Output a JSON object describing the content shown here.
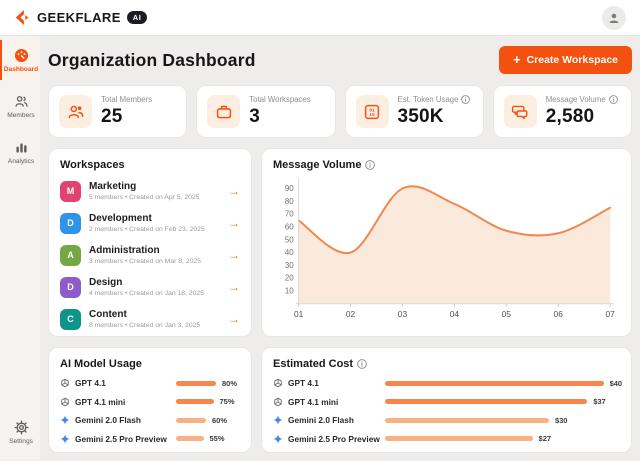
{
  "brand": {
    "name": "GEEKFLARE",
    "badge": "AI"
  },
  "header": {
    "title": "Organization Dashboard",
    "create_button": {
      "plus": "+",
      "label": "Create Workspace"
    }
  },
  "sidebar": {
    "items": [
      {
        "label": "Dashboard",
        "active": true
      },
      {
        "label": "Members",
        "active": false
      },
      {
        "label": "Analytics",
        "active": false
      }
    ],
    "settings": {
      "label": "Settings"
    }
  },
  "colors": {
    "primary": "#f4500f",
    "accent_arrow": "#f4670f",
    "bar_orange": "#f8854a",
    "bar_light": "#f9b184"
  },
  "stats": {
    "cards": [
      {
        "label": "Total Members",
        "value": "25",
        "icon": "members-icon",
        "has_info": false
      },
      {
        "label": "Total Workspaces",
        "value": "3",
        "icon": "briefcase-icon",
        "has_info": false
      },
      {
        "label": "Est. Token Usage",
        "value": "350K",
        "icon": "token-icon",
        "has_info": true
      },
      {
        "label": "Message Volume",
        "value": "2,580",
        "icon": "chat-icon",
        "has_info": true
      }
    ]
  },
  "workspaces": {
    "title": "Workspaces",
    "items": [
      {
        "initial": "M",
        "name": "Marketing",
        "meta": "5 members  •  Created on Apr 5, 2025",
        "color": "#e0436f"
      },
      {
        "initial": "D",
        "name": "Development",
        "meta": "2 members  •  Created on Feb 23, 2025",
        "color": "#2e93ea"
      },
      {
        "initial": "A",
        "name": "Administration",
        "meta": "3 members  •  Created on Mar 8, 2025",
        "color": "#74a844"
      },
      {
        "initial": "D",
        "name": "Design",
        "meta": "4 members  •  Created on Jan 18, 2025",
        "color": "#8e5bc8"
      },
      {
        "initial": "C",
        "name": "Content",
        "meta": "8 members  •  Created on Jan 3, 2025",
        "color": "#0e9488"
      }
    ]
  },
  "chart_data": {
    "type": "area",
    "title": "Message Volume",
    "x": [
      "01",
      "02",
      "03",
      "04",
      "05",
      "06",
      "07"
    ],
    "values": [
      65,
      40,
      90,
      78,
      57,
      55,
      75
    ],
    "yticks": [
      10,
      20,
      30,
      40,
      50,
      60,
      70,
      80,
      90
    ],
    "ylim": [
      0,
      95
    ],
    "line_color": "#ef8a4e",
    "fill_color": "#fbe9dc",
    "grid": false,
    "legend": "none"
  },
  "usage": {
    "title": "AI Model Usage",
    "items": [
      {
        "model": "GPT 4.1",
        "provider": "openai",
        "value": 80,
        "pct": "80%",
        "bar_color": "#f8854a"
      },
      {
        "model": "GPT 4.1 mini",
        "provider": "openai",
        "value": 75,
        "pct": "75%",
        "bar_color": "#f8854a"
      },
      {
        "model": "Gemini 2.0 Flash",
        "provider": "gemini",
        "value": 60,
        "pct": "60%",
        "bar_color": "#f9b184"
      },
      {
        "model": "Gemini 2.5 Pro Preview",
        "provider": "gemini",
        "value": 55,
        "pct": "55%",
        "bar_color": "#f9b184"
      }
    ]
  },
  "cost": {
    "title": "Estimated Cost",
    "items": [
      {
        "model": "GPT 4.1",
        "provider": "openai",
        "value": 40,
        "cost": "$40",
        "bar_color": "#f8854a"
      },
      {
        "model": "GPT 4.1 mini",
        "provider": "openai",
        "value": 37,
        "cost": "$37",
        "bar_color": "#f8854a"
      },
      {
        "model": "Gemini 2.0 Flash",
        "provider": "gemini",
        "value": 30,
        "cost": "$30",
        "bar_color": "#f9b184"
      },
      {
        "model": "Gemini 2.5 Pro Preview",
        "provider": "gemini",
        "value": 27,
        "cost": "$27",
        "bar_color": "#f9b184"
      }
    ]
  }
}
